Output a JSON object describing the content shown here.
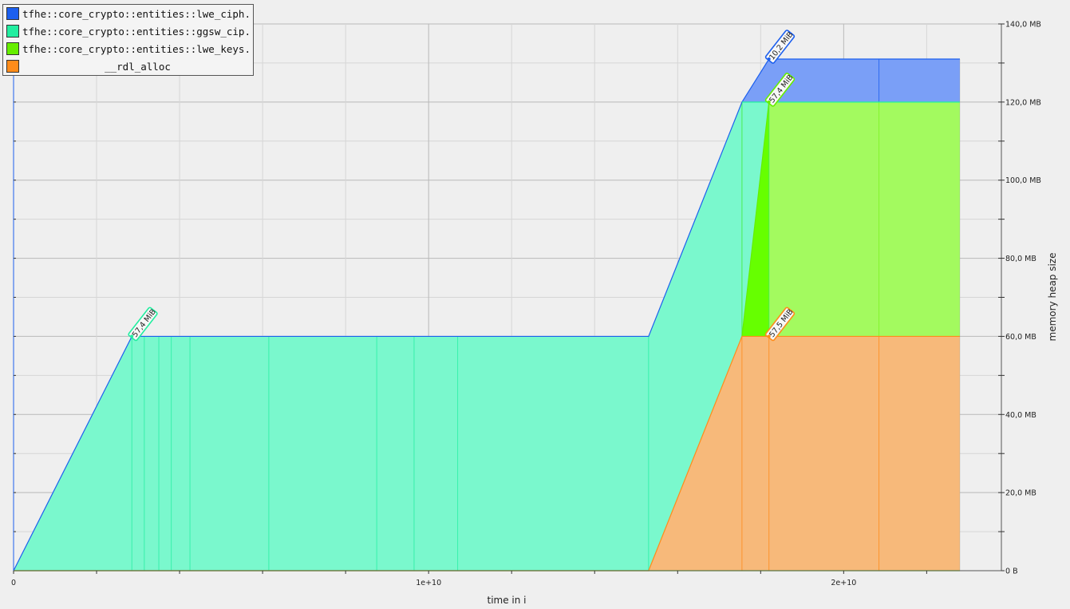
{
  "chart_data": {
    "type": "area",
    "stacked": true,
    "title": "",
    "xlabel": "time in i",
    "ylabel": "memory heap size",
    "xlim": [
      0,
      23000000000
    ],
    "ylim": [
      0,
      140
    ],
    "x_ticks": [
      {
        "value": 0,
        "label": "0"
      },
      {
        "value": 10000000000,
        "label": "1e+10"
      },
      {
        "value": 20000000000,
        "label": "2e+10"
      }
    ],
    "y_ticks": [
      {
        "value": 0,
        "label": "0 B"
      },
      {
        "value": 20,
        "label": "20,0 MB"
      },
      {
        "value": 40,
        "label": "40,0 MB"
      },
      {
        "value": 60,
        "label": "60,0 MB"
      },
      {
        "value": 80,
        "label": "80,0 MB"
      },
      {
        "value": 100,
        "label": "100,0 MB"
      },
      {
        "value": 120,
        "label": "120,0 MB"
      },
      {
        "value": 140,
        "label": "140,0 MB"
      }
    ],
    "legend_position": "top-left",
    "series": [
      {
        "name": "__rdl_alloc",
        "color": "#f7b97a",
        "line_color": "#ff8c1a",
        "points": [
          [
            0,
            0
          ],
          [
            15300000000,
            0
          ],
          [
            17550000000,
            60
          ],
          [
            22800000000,
            60
          ]
        ]
      },
      {
        "name": "tfhe::core_crypto::entities::lwe_keys...",
        "color": "#a3fa5f",
        "line_color": "#66ee00",
        "dark_color": "#66ff00",
        "points": [
          [
            0,
            0
          ],
          [
            17550000000,
            0
          ],
          [
            18200000000,
            60
          ],
          [
            22800000000,
            60
          ]
        ]
      },
      {
        "name": "tfhe::core_crypto::entities::ggsw_cip...",
        "color": "#7af8cd",
        "line_color": "#22eea0",
        "points": [
          [
            0,
            60
          ],
          [
            2850000000,
            60
          ],
          [
            15300000000,
            60
          ],
          [
            17550000000,
            60
          ],
          [
            18200000000,
            0
          ],
          [
            22800000000,
            0
          ]
        ],
        "total_points": [
          [
            0,
            0
          ],
          [
            2850000000,
            60
          ],
          [
            15300000000,
            60
          ],
          [
            17550000000,
            120
          ],
          [
            18200000000,
            120
          ],
          [
            22800000000,
            120
          ]
        ]
      },
      {
        "name": "tfhe::core_crypto::entities::lwe_ciph...",
        "color": "#7a9ff7",
        "line_color": "#1c5fee",
        "points": [
          [
            0,
            0
          ],
          [
            17550000000,
            0
          ],
          [
            18200000000,
            10
          ],
          [
            22800000000,
            10
          ]
        ]
      }
    ],
    "stacked_tops": {
      "orange": [
        [
          0,
          0
        ],
        [
          15300000000,
          0
        ],
        [
          17550000000,
          60
        ],
        [
          22800000000,
          60
        ]
      ],
      "green": [
        [
          0,
          0
        ],
        [
          15300000000,
          0
        ],
        [
          17550000000,
          60
        ],
        [
          18200000000,
          120
        ],
        [
          22800000000,
          120
        ]
      ],
      "teal": [
        [
          0,
          0
        ],
        [
          2850000000,
          60
        ],
        [
          15300000000,
          60
        ],
        [
          17550000000,
          120
        ],
        [
          18200000000,
          120
        ],
        [
          22800000000,
          120
        ]
      ],
      "blue": [
        [
          0,
          0
        ],
        [
          2850000000,
          60
        ],
        [
          15300000000,
          60
        ],
        [
          17550000000,
          120
        ],
        [
          18200000000,
          131
        ],
        [
          22800000000,
          131
        ]
      ]
    },
    "vertical_lines": {
      "teal": [
        2850000000,
        3150000000,
        3500000000,
        3800000000,
        4250000000,
        6150000000,
        8750000000,
        9650000000,
        10700000000,
        15300000000,
        17550000000,
        18200000000
      ],
      "orange": [
        17550000000,
        18200000000,
        20850000000
      ],
      "blue": [
        20850000000
      ]
    },
    "peak_labels": [
      {
        "text": "57,4 MiB",
        "x": 2850000000,
        "y": 60,
        "color": "#22eea0"
      },
      {
        "text": "10,2 MiB",
        "x": 18200000000,
        "y": 131,
        "color": "#1c5fee"
      },
      {
        "text": "57,4 MiB",
        "x": 18200000000,
        "y": 120,
        "color": "#66ee00"
      },
      {
        "text": "57,5 MiB",
        "x": 18200000000,
        "y": 60,
        "color": "#ff8c1a"
      }
    ]
  },
  "legend": [
    {
      "label": "tfhe::core_crypto::entities::lwe_ciph...",
      "color": "#1c5fee",
      "align": "left"
    },
    {
      "label": "tfhe::core_crypto::entities::ggsw_cip...",
      "color": "#22eea0",
      "align": "left"
    },
    {
      "label": "tfhe::core_crypto::entities::lwe_keys...",
      "color": "#66ee00",
      "align": "left"
    },
    {
      "label": "__rdl_alloc",
      "color": "#ff8c1a",
      "align": "center"
    }
  ]
}
